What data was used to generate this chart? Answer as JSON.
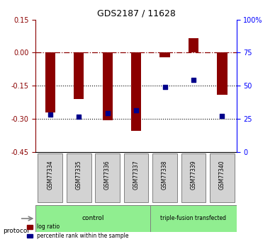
{
  "title": "GDS2187 / 11628",
  "samples": [
    "GSM77334",
    "GSM77335",
    "GSM77336",
    "GSM77337",
    "GSM77338",
    "GSM77339",
    "GSM77340"
  ],
  "log_ratio": [
    -0.27,
    -0.21,
    -0.305,
    -0.355,
    -0.02,
    0.065,
    -0.19
  ],
  "percentile_rank": [
    0.285,
    0.27,
    0.295,
    0.315,
    0.49,
    0.545,
    0.275
  ],
  "protocol_groups": [
    {
      "label": "control",
      "samples": [
        "GSM77334",
        "GSM77335",
        "GSM77336",
        "GSM77337"
      ],
      "color": "#90ee90"
    },
    {
      "label": "triple-fusion transfected",
      "samples": [
        "GSM77338",
        "GSM77339",
        "GSM77340"
      ],
      "color": "#90ee90"
    }
  ],
  "control_indices": [
    0,
    1,
    2,
    3
  ],
  "transfected_indices": [
    4,
    5,
    6
  ],
  "bar_color": "#8b0000",
  "dot_color": "#00008b",
  "ylim_left": [
    -0.45,
    0.15
  ],
  "ylim_right": [
    0,
    100
  ],
  "yticks_left": [
    0.15,
    0,
    -0.15,
    -0.3,
    -0.45
  ],
  "yticks_right": [
    100,
    75,
    50,
    25,
    0
  ],
  "dotted_lines": [
    -0.15,
    -0.3
  ],
  "dashed_line": 0.0,
  "bar_width": 0.35,
  "figsize": [
    3.88,
    3.45
  ],
  "dpi": 100
}
